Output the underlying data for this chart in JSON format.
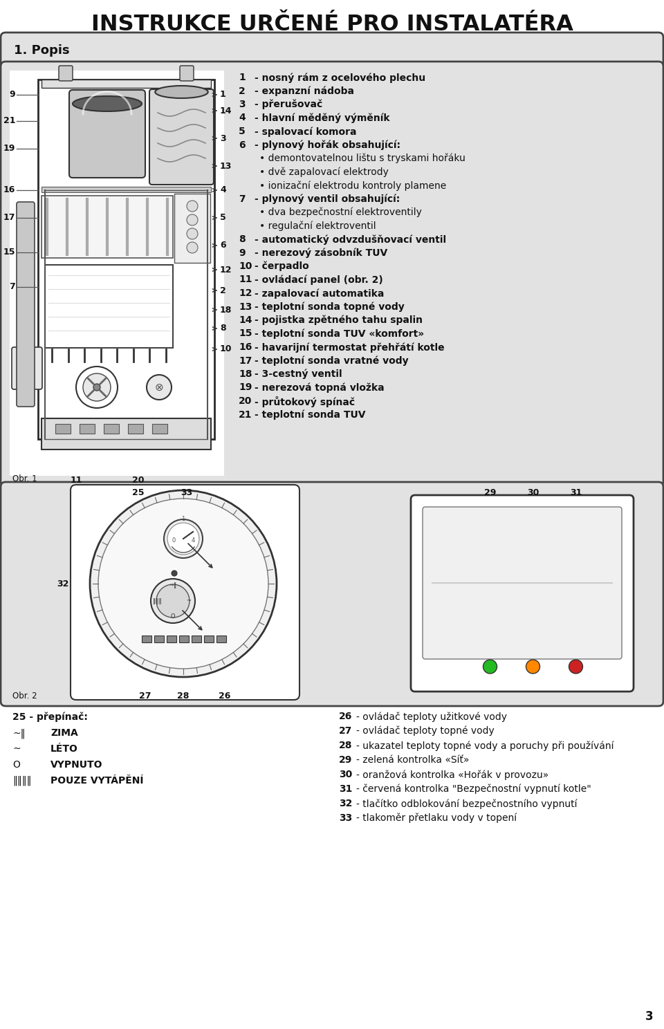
{
  "title": "INSTRUKCE URČENÉ PRO INSTALATÉRA",
  "section_title": "1. Popis",
  "bg_color": "#ffffff",
  "section_bg": "#e2e2e2",
  "text_color": "#111111",
  "right_col_items": [
    {
      "num": "1",
      "bold": true,
      "text": "nosný rám z ocelového plechu"
    },
    {
      "num": "2",
      "bold": true,
      "text": "expanzní nádoba"
    },
    {
      "num": "3",
      "bold": true,
      "text": "přerušovač"
    },
    {
      "num": "4",
      "bold": true,
      "text": "hlavní měděný výměník"
    },
    {
      "num": "5",
      "bold": true,
      "text": "spalovací komora"
    },
    {
      "num": "6",
      "bold": true,
      "text": "plynový hořák obsahující:"
    },
    {
      "num": "",
      "bold": false,
      "text": "• demontovatelnou lištu s tryskami hořáku"
    },
    {
      "num": "",
      "bold": false,
      "text": "• dvě zapalovací elektrody"
    },
    {
      "num": "",
      "bold": false,
      "text": "• ionizační elektrodu kontroly plamene"
    },
    {
      "num": "7",
      "bold": true,
      "text": "plynový ventil obsahující:"
    },
    {
      "num": "",
      "bold": false,
      "text": "• dva bezpečnostní elektroventily"
    },
    {
      "num": "",
      "bold": false,
      "text": "• regulační elektroventil"
    },
    {
      "num": "8",
      "bold": true,
      "text": "automatický odvzdušňovací ventil"
    },
    {
      "num": "9",
      "bold": true,
      "text": "nerezový zásobník TUV"
    },
    {
      "num": "10",
      "bold": true,
      "text": "čerpadlo"
    },
    {
      "num": "11",
      "bold": true,
      "text": "ovládací panel (obr. 2)"
    },
    {
      "num": "12",
      "bold": true,
      "text": "zapalovací automatika"
    },
    {
      "num": "13",
      "bold": true,
      "text": "teplotní sonda topné vody"
    },
    {
      "num": "14",
      "bold": true,
      "text": "pojistka zpětného tahu spalin"
    },
    {
      "num": "15",
      "bold": true,
      "text": "teplotní sonda TUV «komfort»"
    },
    {
      "num": "16",
      "bold": true,
      "text": "havarijní termostat přehřátí kotle"
    },
    {
      "num": "17",
      "bold": true,
      "text": "teplotní sonda vratné vody"
    },
    {
      "num": "18",
      "bold": true,
      "text": "3-cestný ventil"
    },
    {
      "num": "19",
      "bold": true,
      "text": "nerezová topná vložka"
    },
    {
      "num": "20",
      "bold": true,
      "text": "průtokový spínač"
    },
    {
      "num": "21",
      "bold": true,
      "text": "teplotní sonda TUV"
    }
  ],
  "bottom_right_items": [
    {
      "num": "26",
      "text": "ovládač teploty užitkové vody"
    },
    {
      "num": "27",
      "text": "ovládač teploty topné vody"
    },
    {
      "num": "28",
      "text": "ukazatel teploty topné vody a poruchy při používání"
    },
    {
      "num": "29",
      "text": "zelená kontrolka «Síť»"
    },
    {
      "num": "30",
      "text": "oranžová kontrolka «Hořák v provozu»"
    },
    {
      "num": "31",
      "text": "červená kontrolka \"Bezpečnostní vypnutí kotle\""
    },
    {
      "num": "32",
      "text": "tlačítko odblokování bezpečnostního vypnutí"
    },
    {
      "num": "33",
      "text": "tlakoměr přetlaku vody v topení"
    }
  ],
  "page_number": "3",
  "obr1_label": "Obr. 1",
  "obr2_label": "Obr. 2",
  "title_fontsize": 23,
  "section_fontsize": 13,
  "list_fontsize": 10,
  "label_fontsize": 9
}
